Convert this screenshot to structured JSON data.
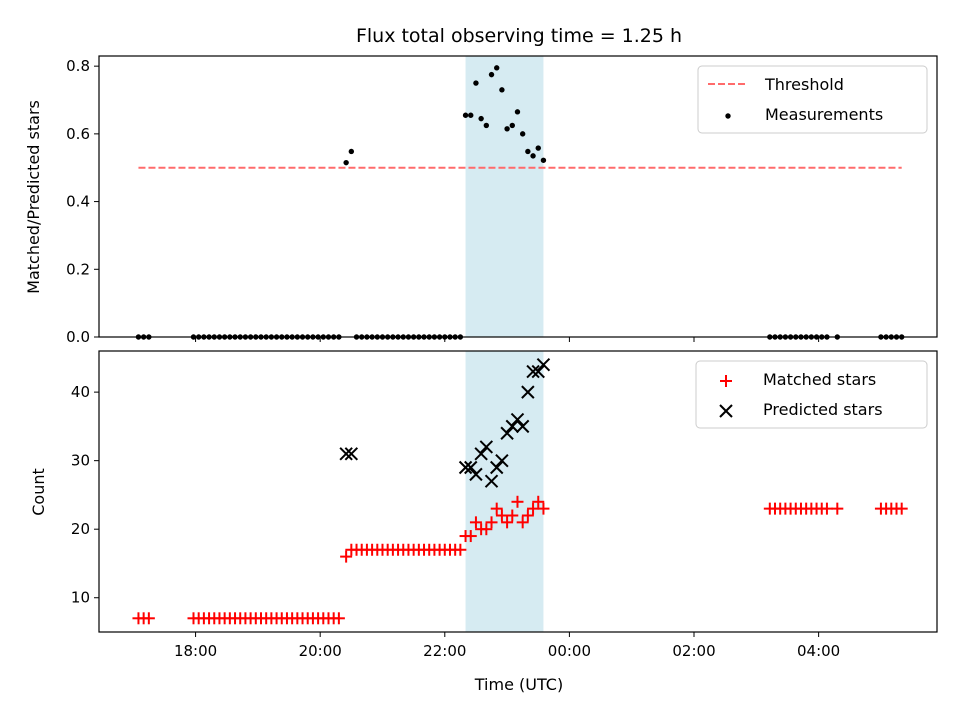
{
  "chart_data": {
    "type": "scatter",
    "title": "Flux total observing time = 1.25 h",
    "xlabel": "Time (UTC)",
    "x_tick_labels": [
      "18:00",
      "20:00",
      "22:00",
      "00:00",
      "02:00",
      "04:00"
    ],
    "highlight_span": {
      "start": "22:20",
      "end": "23:35",
      "color": "#add8e6"
    },
    "colors": {
      "threshold": "#ff6b6b",
      "measurements": "#000000",
      "matched": "#ff0000",
      "predicted": "#000000",
      "span": "#add8e6"
    },
    "panels": [
      {
        "ylabel": "Matched/Predicted stars",
        "ylim": [
          0.0,
          0.83
        ],
        "yticks": [
          "0.0",
          "0.2",
          "0.4",
          "0.6",
          "0.8"
        ],
        "legend": {
          "placement": "top-right"
        },
        "series": [
          {
            "name": "Threshold",
            "style": "dashed-line",
            "points": [
              [
                "17:05",
                0.5
              ],
              [
                "05:20",
                0.5
              ]
            ]
          },
          {
            "name": "Measurements",
            "style": "dot",
            "points": [
              [
                "17:05",
                0
              ],
              [
                "17:10",
                0
              ],
              [
                "17:15",
                0
              ],
              [
                "17:58",
                0
              ],
              [
                "18:03",
                0
              ],
              [
                "18:08",
                0
              ],
              [
                "18:13",
                0
              ],
              [
                "18:18",
                0
              ],
              [
                "18:23",
                0
              ],
              [
                "18:28",
                0
              ],
              [
                "18:33",
                0
              ],
              [
                "18:38",
                0
              ],
              [
                "18:43",
                0
              ],
              [
                "18:48",
                0
              ],
              [
                "18:53",
                0
              ],
              [
                "18:58",
                0
              ],
              [
                "19:03",
                0
              ],
              [
                "19:08",
                0
              ],
              [
                "19:13",
                0
              ],
              [
                "19:18",
                0
              ],
              [
                "19:23",
                0
              ],
              [
                "19:28",
                0
              ],
              [
                "19:33",
                0
              ],
              [
                "19:38",
                0
              ],
              [
                "19:43",
                0
              ],
              [
                "19:48",
                0
              ],
              [
                "19:53",
                0
              ],
              [
                "19:58",
                0
              ],
              [
                "20:03",
                0
              ],
              [
                "20:08",
                0
              ],
              [
                "20:13",
                0
              ],
              [
                "20:18",
                0
              ],
              [
                "20:25",
                0.515
              ],
              [
                "20:30",
                0.548
              ],
              [
                "20:35",
                0
              ],
              [
                "20:40",
                0
              ],
              [
                "20:45",
                0
              ],
              [
                "20:50",
                0
              ],
              [
                "20:55",
                0
              ],
              [
                "21:00",
                0
              ],
              [
                "21:05",
                0
              ],
              [
                "21:10",
                0
              ],
              [
                "21:15",
                0
              ],
              [
                "21:20",
                0
              ],
              [
                "21:25",
                0
              ],
              [
                "21:30",
                0
              ],
              [
                "21:35",
                0
              ],
              [
                "21:40",
                0
              ],
              [
                "21:45",
                0
              ],
              [
                "21:50",
                0
              ],
              [
                "21:55",
                0
              ],
              [
                "22:00",
                0
              ],
              [
                "22:05",
                0
              ],
              [
                "22:10",
                0
              ],
              [
                "22:15",
                0
              ],
              [
                "22:20",
                0.655
              ],
              [
                "22:25",
                0.655
              ],
              [
                "22:30",
                0.75
              ],
              [
                "22:35",
                0.645
              ],
              [
                "22:40",
                0.625
              ],
              [
                "22:45",
                0.775
              ],
              [
                "22:50",
                0.795
              ],
              [
                "22:55",
                0.73
              ],
              [
                "23:00",
                0.615
              ],
              [
                "23:05",
                0.625
              ],
              [
                "23:10",
                0.665
              ],
              [
                "23:15",
                0.6
              ],
              [
                "23:20",
                0.548
              ],
              [
                "23:25",
                0.535
              ],
              [
                "23:30",
                0.558
              ],
              [
                "23:35",
                0.522
              ],
              [
                "03:13",
                0
              ],
              [
                "03:18",
                0
              ],
              [
                "03:23",
                0
              ],
              [
                "03:28",
                0
              ],
              [
                "03:33",
                0
              ],
              [
                "03:38",
                0
              ],
              [
                "03:43",
                0
              ],
              [
                "03:48",
                0
              ],
              [
                "03:53",
                0
              ],
              [
                "03:58",
                0
              ],
              [
                "04:03",
                0
              ],
              [
                "04:08",
                0
              ],
              [
                "04:18",
                0
              ],
              [
                "05:00",
                0
              ],
              [
                "05:05",
                0
              ],
              [
                "05:10",
                0
              ],
              [
                "05:15",
                0
              ],
              [
                "05:20",
                0
              ]
            ]
          }
        ]
      },
      {
        "ylabel": "Count",
        "ylim": [
          5,
          46
        ],
        "yticks": [
          "10",
          "20",
          "30",
          "40"
        ],
        "legend": {
          "placement": "top-right"
        },
        "series": [
          {
            "name": "Matched stars",
            "style": "plus",
            "points": [
              [
                "17:05",
                7
              ],
              [
                "17:10",
                7
              ],
              [
                "17:15",
                7
              ],
              [
                "17:58",
                7
              ],
              [
                "18:03",
                7
              ],
              [
                "18:08",
                7
              ],
              [
                "18:13",
                7
              ],
              [
                "18:18",
                7
              ],
              [
                "18:23",
                7
              ],
              [
                "18:28",
                7
              ],
              [
                "18:33",
                7
              ],
              [
                "18:38",
                7
              ],
              [
                "18:43",
                7
              ],
              [
                "18:48",
                7
              ],
              [
                "18:53",
                7
              ],
              [
                "18:58",
                7
              ],
              [
                "19:03",
                7
              ],
              [
                "19:08",
                7
              ],
              [
                "19:13",
                7
              ],
              [
                "19:18",
                7
              ],
              [
                "19:23",
                7
              ],
              [
                "19:28",
                7
              ],
              [
                "19:33",
                7
              ],
              [
                "19:38",
                7
              ],
              [
                "19:43",
                7
              ],
              [
                "19:48",
                7
              ],
              [
                "19:53",
                7
              ],
              [
                "19:58",
                7
              ],
              [
                "20:03",
                7
              ],
              [
                "20:08",
                7
              ],
              [
                "20:13",
                7
              ],
              [
                "20:18",
                7
              ],
              [
                "20:25",
                16
              ],
              [
                "20:30",
                17
              ],
              [
                "20:35",
                17
              ],
              [
                "20:40",
                17
              ],
              [
                "20:45",
                17
              ],
              [
                "20:50",
                17
              ],
              [
                "20:55",
                17
              ],
              [
                "21:00",
                17
              ],
              [
                "21:05",
                17
              ],
              [
                "21:10",
                17
              ],
              [
                "21:15",
                17
              ],
              [
                "21:20",
                17
              ],
              [
                "21:25",
                17
              ],
              [
                "21:30",
                17
              ],
              [
                "21:35",
                17
              ],
              [
                "21:40",
                17
              ],
              [
                "21:45",
                17
              ],
              [
                "21:50",
                17
              ],
              [
                "21:55",
                17
              ],
              [
                "22:00",
                17
              ],
              [
                "22:05",
                17
              ],
              [
                "22:10",
                17
              ],
              [
                "22:15",
                17
              ],
              [
                "22:20",
                19
              ],
              [
                "22:25",
                19
              ],
              [
                "22:30",
                21
              ],
              [
                "22:35",
                20
              ],
              [
                "22:40",
                20
              ],
              [
                "22:45",
                21
              ],
              [
                "22:50",
                23
              ],
              [
                "22:55",
                22
              ],
              [
                "23:00",
                21
              ],
              [
                "23:05",
                22
              ],
              [
                "23:10",
                24
              ],
              [
                "23:15",
                21
              ],
              [
                "23:20",
                22
              ],
              [
                "23:25",
                23
              ],
              [
                "23:30",
                24
              ],
              [
                "23:35",
                23
              ],
              [
                "03:13",
                23
              ],
              [
                "03:18",
                23
              ],
              [
                "03:23",
                23
              ],
              [
                "03:28",
                23
              ],
              [
                "03:33",
                23
              ],
              [
                "03:38",
                23
              ],
              [
                "03:43",
                23
              ],
              [
                "03:48",
                23
              ],
              [
                "03:53",
                23
              ],
              [
                "03:58",
                23
              ],
              [
                "04:03",
                23
              ],
              [
                "04:08",
                23
              ],
              [
                "04:18",
                23
              ],
              [
                "05:00",
                23
              ],
              [
                "05:05",
                23
              ],
              [
                "05:10",
                23
              ],
              [
                "05:15",
                23
              ],
              [
                "05:20",
                23
              ]
            ]
          },
          {
            "name": "Predicted stars",
            "style": "x",
            "points": [
              [
                "20:25",
                31
              ],
              [
                "20:30",
                31
              ],
              [
                "22:20",
                29
              ],
              [
                "22:25",
                29
              ],
              [
                "22:30",
                28
              ],
              [
                "22:35",
                31
              ],
              [
                "22:40",
                32
              ],
              [
                "22:45",
                27
              ],
              [
                "22:50",
                29
              ],
              [
                "22:55",
                30
              ],
              [
                "23:00",
                34
              ],
              [
                "23:05",
                35
              ],
              [
                "23:10",
                36
              ],
              [
                "23:15",
                35
              ],
              [
                "23:20",
                40
              ],
              [
                "23:25",
                43
              ],
              [
                "23:30",
                43
              ],
              [
                "23:35",
                44
              ]
            ]
          }
        ]
      }
    ]
  }
}
